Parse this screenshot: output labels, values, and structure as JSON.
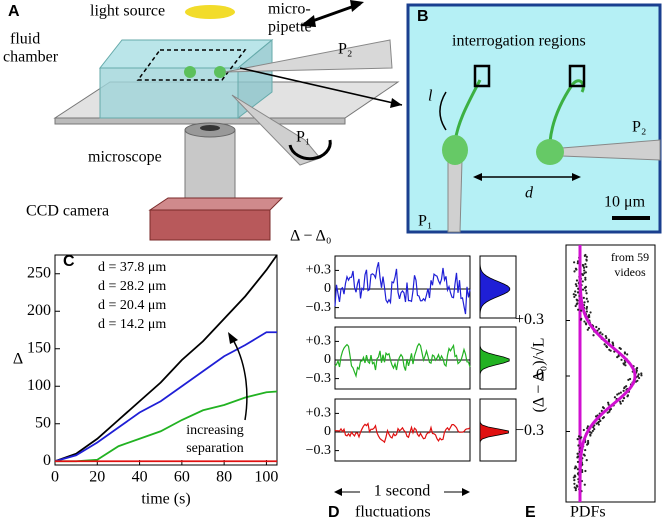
{
  "panel_a": {
    "label": "A",
    "light_source": "light source",
    "pipette_lines": [
      "micro-",
      "pipette"
    ],
    "chamber_lines": [
      "fluid",
      "chamber"
    ],
    "p2": "P₂",
    "p1": "P₁",
    "microscope": "microscope",
    "camera": "CCD camera"
  },
  "panel_b": {
    "label": "B",
    "title": "interrogation regions",
    "length": "l",
    "separation": "d",
    "p1": "P₁",
    "p2": "P₂",
    "scale_bar": "10 μm"
  },
  "chart_data": {
    "type": "line",
    "label": "C",
    "x_label": "time (s)",
    "y_label": "Δ",
    "annotation": [
      "increasing",
      "separation"
    ],
    "x": [
      0,
      10,
      20,
      30,
      40,
      50,
      60,
      70,
      80,
      90,
      100,
      105
    ],
    "series": [
      {
        "name": "d = 37.8 μm",
        "color": "#000000",
        "values": [
          0,
          10,
          30,
          55,
          80,
          105,
          135,
          160,
          190,
          220,
          255,
          275
        ]
      },
      {
        "name": "d = 28.2 μm",
        "color": "#1f1fd6",
        "values": [
          0,
          8,
          25,
          45,
          65,
          80,
          100,
          120,
          140,
          155,
          172,
          172
        ]
      },
      {
        "name": "d = 20.4 μm",
        "color": "#22b222",
        "values": [
          0,
          0,
          2,
          20,
          30,
          40,
          55,
          68,
          75,
          85,
          92,
          93
        ]
      },
      {
        "name": "d = 14.2 μm",
        "color": "#e01010",
        "values": [
          0,
          0,
          0,
          0,
          0,
          0,
          0,
          0,
          0,
          0,
          0,
          0
        ]
      }
    ],
    "xlim": [
      0,
      105
    ],
    "ylim": [
      -5,
      275
    ],
    "xticks": [
      0,
      20,
      40,
      60,
      80,
      100
    ],
    "yticks": [
      0,
      50,
      100,
      150,
      200,
      250
    ]
  },
  "panel_d": {
    "label": "D",
    "title": "fluctuations",
    "y_label": "Δ − Δ₀",
    "time_scale": "1 second",
    "yticks": [
      {
        "value": 0.3,
        "label": "+0.3"
      },
      0,
      {
        "value": -0.3,
        "label": "−0.3"
      }
    ],
    "colors": [
      "#1f1fd6",
      "#22b222",
      "#e01010"
    ]
  },
  "panel_e": {
    "label": "E",
    "title": "PDFs",
    "y_label": "(Δ − Δ₀)/√L",
    "note": [
      "from 59",
      "videos"
    ],
    "yticks": [
      {
        "value": 0.3,
        "label": "+0.3"
      },
      0,
      {
        "value": -0.3,
        "label": "−0.3"
      }
    ],
    "curve_color": "#d010d0"
  }
}
